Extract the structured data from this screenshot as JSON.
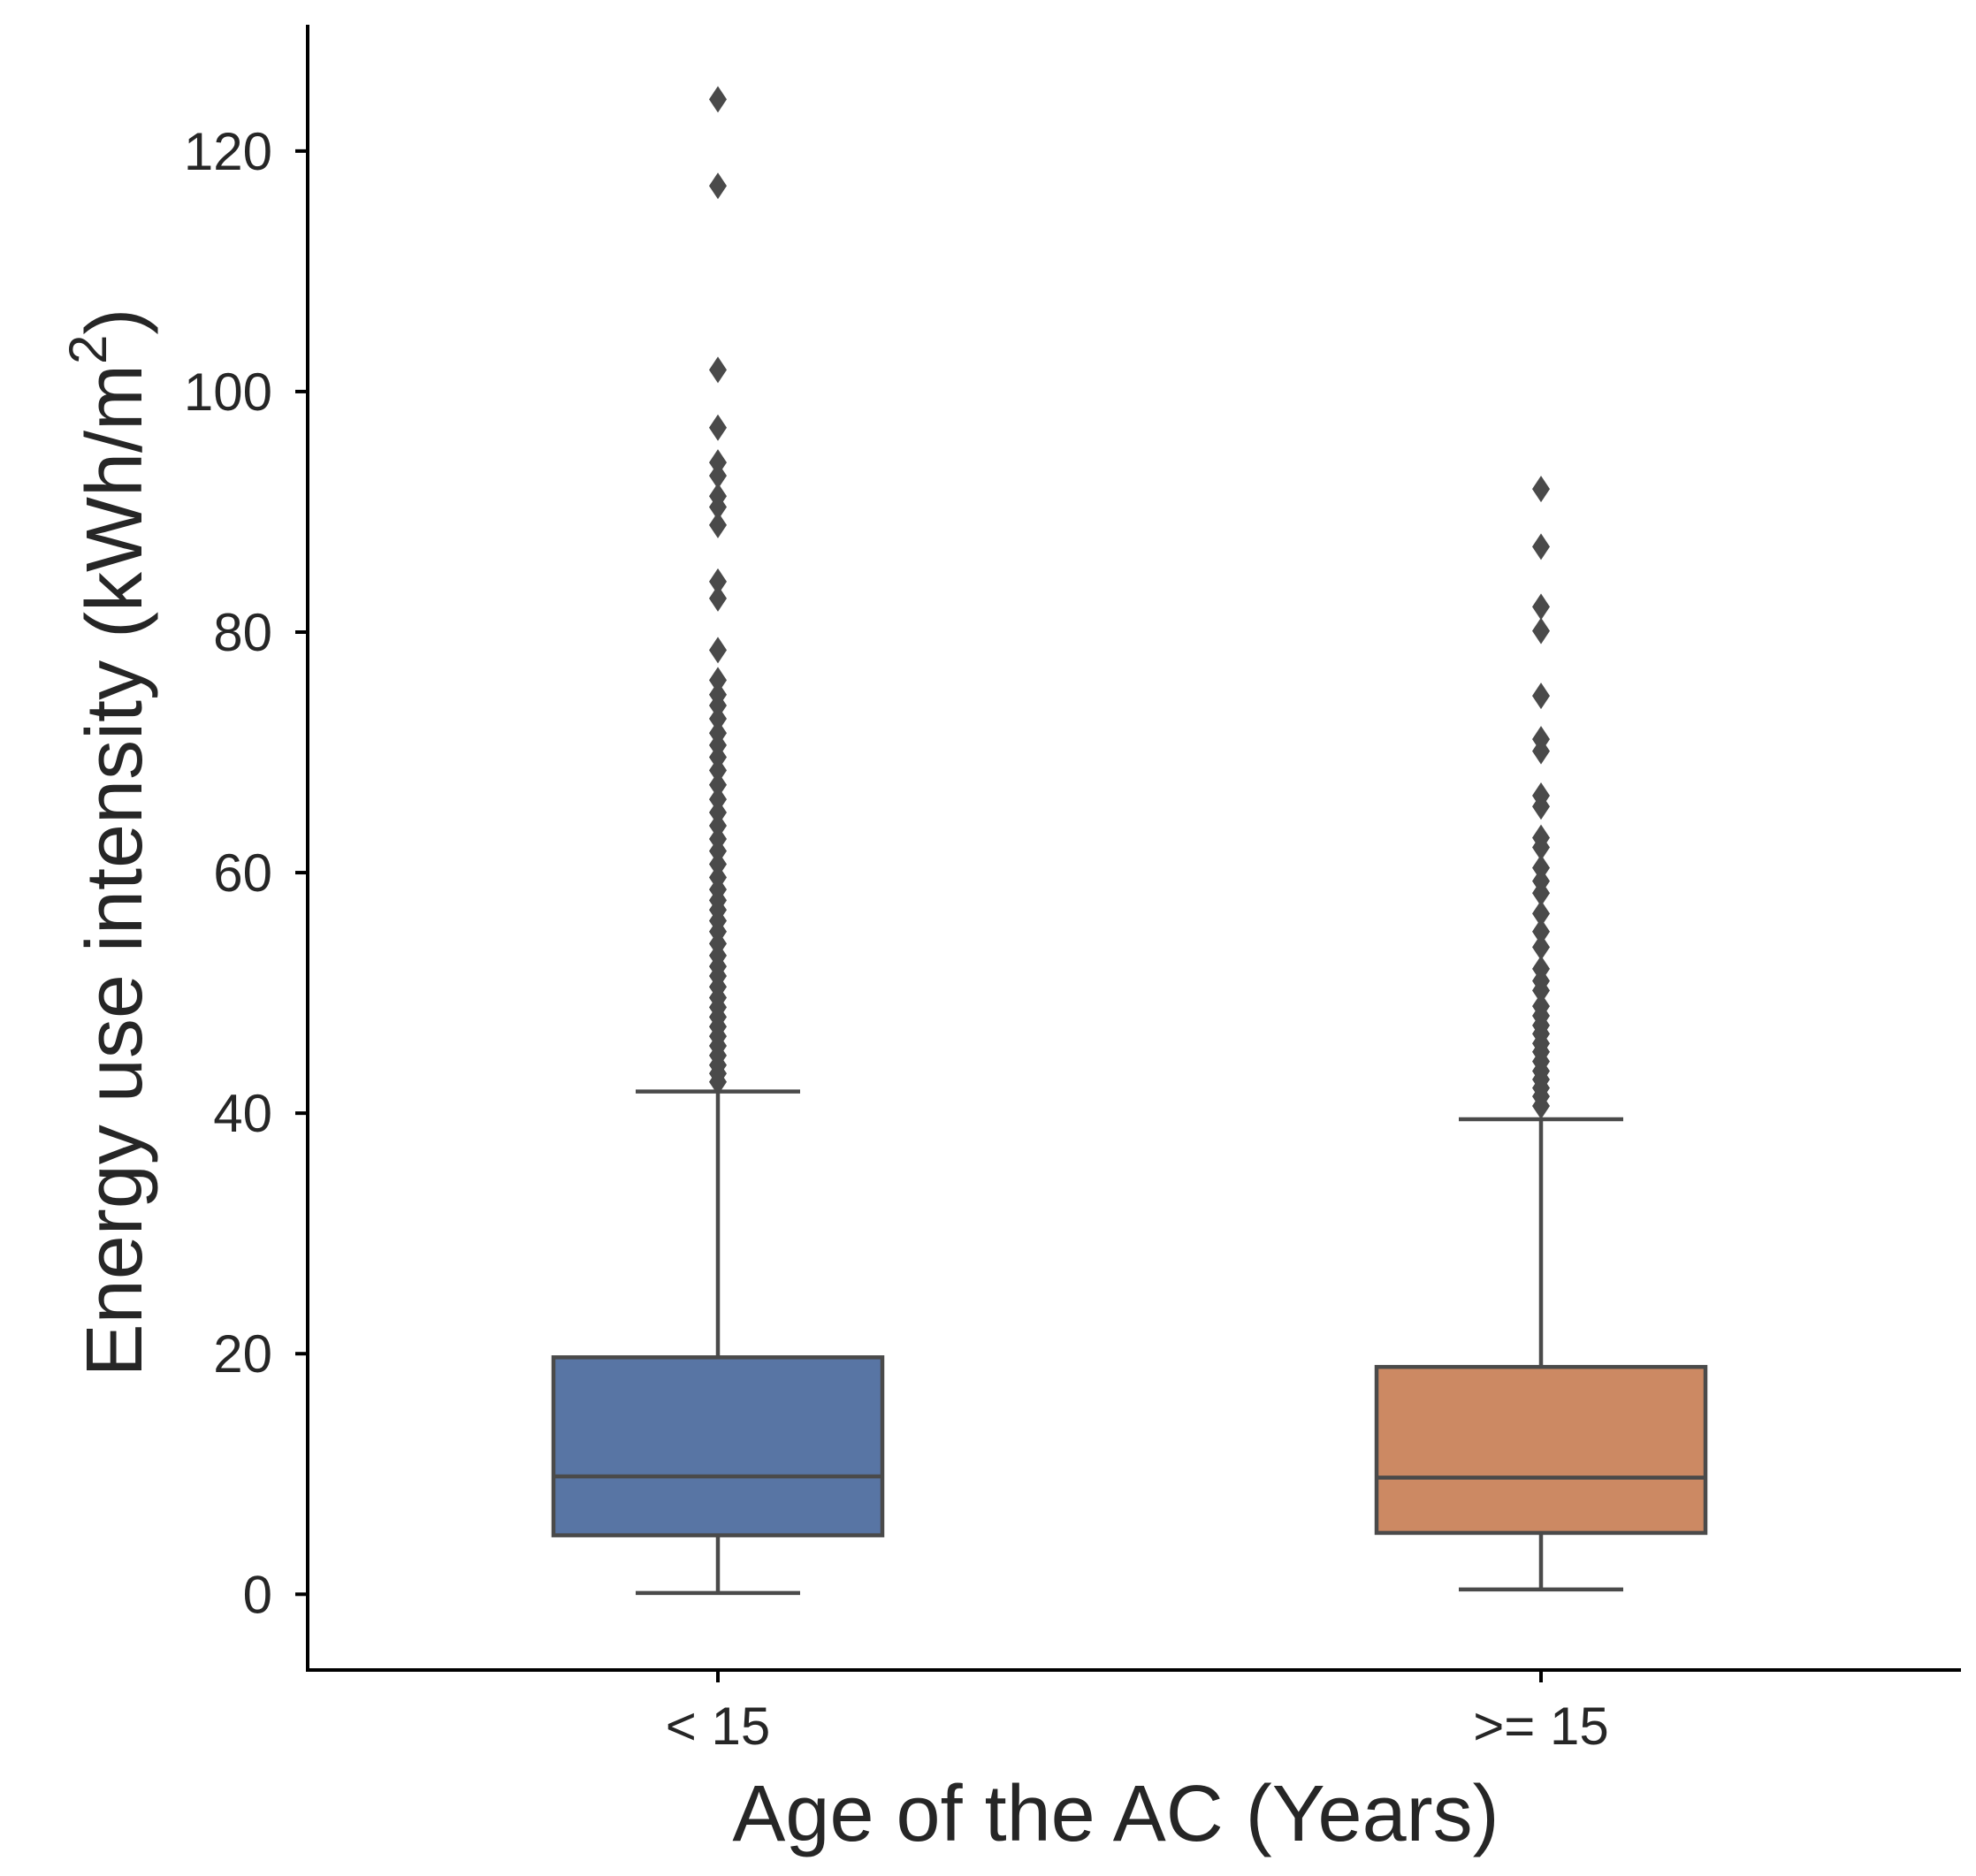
{
  "chart_data": {
    "type": "box",
    "xlabel": "Age of the AC (Years)",
    "ylabel_main": "Energy use intensity (kWh/m",
    "ylabel_sup": "2",
    "ylabel_close": ")",
    "ylim": [
      -6.3,
      130.5
    ],
    "yticks": [
      0,
      20,
      40,
      60,
      80,
      100,
      120
    ],
    "ytick_labels": [
      "0",
      "20",
      "40",
      "60",
      "80",
      "100",
      "120"
    ],
    "categories": [
      "< 15",
      ">= 15"
    ],
    "grid": false,
    "outline_color": "#4a4a4a",
    "boxes": [
      {
        "category": "< 15",
        "color": "#5875a4",
        "whisker_low": 0.1,
        "q1": 4.9,
        "median": 9.8,
        "q3": 19.7,
        "whisker_high": 41.8,
        "outliers": [
          124.3,
          117.1,
          101.8,
          97.0,
          94.1,
          93.0,
          91.3,
          90.4,
          88.9,
          84.2,
          82.8,
          78.5,
          76.0,
          74.8,
          73.9,
          72.8,
          71.6,
          70.6,
          69.6,
          68.5,
          67.3,
          66.1,
          65.0,
          63.9,
          62.8,
          61.8,
          60.7,
          59.6,
          58.6,
          57.7,
          56.9,
          56.0,
          55.1,
          54.1,
          53.1,
          52.2,
          51.4,
          50.5,
          49.6,
          48.8,
          48.0,
          47.2,
          46.4,
          45.6,
          44.8,
          44.0,
          43.3,
          42.6
        ]
      },
      {
        "category": ">= 15",
        "color": "#cc8963",
        "whisker_low": 0.4,
        "q1": 5.1,
        "median": 9.7,
        "q3": 18.9,
        "whisker_high": 39.5,
        "outliers": [
          91.9,
          87.1,
          82.1,
          80.1,
          74.7,
          71.1,
          70.1,
          66.4,
          65.5,
          62.9,
          62.1,
          60.4,
          59.3,
          58.3,
          56.6,
          55.1,
          53.8,
          52.0,
          51.0,
          50.2,
          48.9,
          48.1,
          47.3,
          46.6,
          45.8,
          45.1,
          44.3,
          43.5,
          42.8,
          42.1,
          41.4,
          40.6
        ]
      }
    ]
  }
}
